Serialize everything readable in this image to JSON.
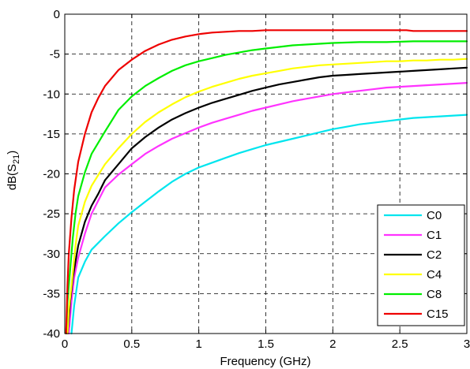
{
  "chart_data": {
    "type": "line",
    "title": "",
    "xlabel": "Frequency (GHz)",
    "ylabel_parts": {
      "main": "dB(S",
      "sub": "21",
      "end": ")"
    },
    "xlim": [
      0,
      3
    ],
    "ylim": [
      -40,
      0
    ],
    "x_ticks": [
      0,
      0.5,
      1,
      1.5,
      2,
      2.5,
      3
    ],
    "x_tick_labels": [
      "0",
      "0.5",
      "1",
      "1.5",
      "2",
      "2.5",
      "3"
    ],
    "y_ticks": [
      -40,
      -35,
      -30,
      -25,
      -20,
      -15,
      -10,
      -5,
      0
    ],
    "y_tick_labels": [
      "-40",
      "-35",
      "-30",
      "-25",
      "-20",
      "-15",
      "-10",
      "-5",
      "0"
    ],
    "grid": true,
    "grid_style": "dashed",
    "legend_position": "bottom-right",
    "series": [
      {
        "name": "C0",
        "color": "#00e5ee",
        "points": [
          [
            0.05,
            -40
          ],
          [
            0.07,
            -36.5
          ],
          [
            0.1,
            -33
          ],
          [
            0.15,
            -31
          ],
          [
            0.2,
            -29.5
          ],
          [
            0.3,
            -27.8
          ],
          [
            0.4,
            -26.2
          ],
          [
            0.5,
            -24.8
          ],
          [
            0.6,
            -23.5
          ],
          [
            0.7,
            -22.2
          ],
          [
            0.8,
            -21
          ],
          [
            0.9,
            -20
          ],
          [
            1.0,
            -19.2
          ],
          [
            1.1,
            -18.6
          ],
          [
            1.2,
            -18
          ],
          [
            1.3,
            -17.4
          ],
          [
            1.4,
            -16.9
          ],
          [
            1.5,
            -16.4
          ],
          [
            1.6,
            -16
          ],
          [
            1.7,
            -15.6
          ],
          [
            1.8,
            -15.2
          ],
          [
            1.9,
            -14.8
          ],
          [
            2.0,
            -14.4
          ],
          [
            2.1,
            -14.1
          ],
          [
            2.2,
            -13.8
          ],
          [
            2.3,
            -13.6
          ],
          [
            2.4,
            -13.4
          ],
          [
            2.5,
            -13.2
          ],
          [
            2.6,
            -13
          ],
          [
            2.7,
            -12.9
          ],
          [
            2.8,
            -12.8
          ],
          [
            2.9,
            -12.7
          ],
          [
            3.0,
            -12.6
          ]
        ]
      },
      {
        "name": "C1",
        "color": "#ff33ff",
        "points": [
          [
            0.03,
            -40
          ],
          [
            0.05,
            -36
          ],
          [
            0.07,
            -33
          ],
          [
            0.1,
            -30.5
          ],
          [
            0.15,
            -27.5
          ],
          [
            0.2,
            -25
          ],
          [
            0.3,
            -21.7
          ],
          [
            0.4,
            -20.1
          ],
          [
            0.5,
            -18.8
          ],
          [
            0.6,
            -17.5
          ],
          [
            0.7,
            -16.5
          ],
          [
            0.8,
            -15.6
          ],
          [
            0.9,
            -14.9
          ],
          [
            1.0,
            -14.2
          ],
          [
            1.1,
            -13.6
          ],
          [
            1.2,
            -13.1
          ],
          [
            1.3,
            -12.6
          ],
          [
            1.4,
            -12.1
          ],
          [
            1.5,
            -11.7
          ],
          [
            1.6,
            -11.3
          ],
          [
            1.7,
            -10.9
          ],
          [
            1.8,
            -10.6
          ],
          [
            1.9,
            -10.3
          ],
          [
            2.0,
            -10
          ],
          [
            2.1,
            -9.8
          ],
          [
            2.2,
            -9.6
          ],
          [
            2.3,
            -9.4
          ],
          [
            2.4,
            -9.2
          ],
          [
            2.5,
            -9.1
          ],
          [
            2.6,
            -9
          ],
          [
            2.7,
            -8.9
          ],
          [
            2.8,
            -8.8
          ],
          [
            2.9,
            -8.7
          ],
          [
            3.0,
            -8.6
          ]
        ]
      },
      {
        "name": "C2",
        "color": "#000000",
        "points": [
          [
            0.02,
            -40
          ],
          [
            0.04,
            -36
          ],
          [
            0.06,
            -33
          ],
          [
            0.1,
            -29
          ],
          [
            0.15,
            -26
          ],
          [
            0.2,
            -24
          ],
          [
            0.25,
            -22.5
          ],
          [
            0.3,
            -20.8
          ],
          [
            0.4,
            -18.8
          ],
          [
            0.5,
            -16.8
          ],
          [
            0.6,
            -15.4
          ],
          [
            0.7,
            -14.2
          ],
          [
            0.8,
            -13.2
          ],
          [
            0.9,
            -12.4
          ],
          [
            1.0,
            -11.7
          ],
          [
            1.1,
            -11.1
          ],
          [
            1.2,
            -10.6
          ],
          [
            1.3,
            -10.1
          ],
          [
            1.4,
            -9.6
          ],
          [
            1.5,
            -9.2
          ],
          [
            1.6,
            -8.8
          ],
          [
            1.7,
            -8.5
          ],
          [
            1.8,
            -8.2
          ],
          [
            1.9,
            -7.9
          ],
          [
            2.0,
            -7.7
          ],
          [
            2.1,
            -7.6
          ],
          [
            2.2,
            -7.5
          ],
          [
            2.3,
            -7.4
          ],
          [
            2.4,
            -7.3
          ],
          [
            2.5,
            -7.2
          ],
          [
            2.6,
            -7.1
          ],
          [
            2.7,
            -7
          ],
          [
            2.8,
            -6.9
          ],
          [
            2.9,
            -6.8
          ],
          [
            3.0,
            -6.7
          ]
        ]
      },
      {
        "name": "C4",
        "color": "#ffff00",
        "points": [
          [
            0.02,
            -40
          ],
          [
            0.03,
            -37
          ],
          [
            0.05,
            -34
          ],
          [
            0.08,
            -29
          ],
          [
            0.1,
            -26.5
          ],
          [
            0.15,
            -23.5
          ],
          [
            0.2,
            -21.5
          ],
          [
            0.3,
            -18.8
          ],
          [
            0.4,
            -16.8
          ],
          [
            0.5,
            -15
          ],
          [
            0.6,
            -13.5
          ],
          [
            0.7,
            -12.3
          ],
          [
            0.8,
            -11.3
          ],
          [
            0.9,
            -10.4
          ],
          [
            1.0,
            -9.7
          ],
          [
            1.1,
            -9.1
          ],
          [
            1.2,
            -8.6
          ],
          [
            1.3,
            -8.1
          ],
          [
            1.4,
            -7.7
          ],
          [
            1.5,
            -7.4
          ],
          [
            1.6,
            -7.1
          ],
          [
            1.7,
            -6.8
          ],
          [
            1.8,
            -6.6
          ],
          [
            1.9,
            -6.4
          ],
          [
            2.0,
            -6.3
          ],
          [
            2.1,
            -6.2
          ],
          [
            2.2,
            -6.1
          ],
          [
            2.3,
            -6
          ],
          [
            2.4,
            -5.9
          ],
          [
            2.5,
            -5.9
          ],
          [
            2.6,
            -5.8
          ],
          [
            2.7,
            -5.8
          ],
          [
            2.8,
            -5.7
          ],
          [
            2.9,
            -5.7
          ],
          [
            3.0,
            -5.6
          ]
        ]
      },
      {
        "name": "C8",
        "color": "#00ee00",
        "points": [
          [
            0.01,
            -40
          ],
          [
            0.02,
            -36
          ],
          [
            0.04,
            -32
          ],
          [
            0.06,
            -28
          ],
          [
            0.08,
            -25
          ],
          [
            0.1,
            -22.8
          ],
          [
            0.15,
            -19.8
          ],
          [
            0.2,
            -17.5
          ],
          [
            0.3,
            -14.7
          ],
          [
            0.4,
            -12
          ],
          [
            0.5,
            -10.3
          ],
          [
            0.6,
            -9
          ],
          [
            0.7,
            -8
          ],
          [
            0.8,
            -7.1
          ],
          [
            0.9,
            -6.4
          ],
          [
            1.0,
            -5.9
          ],
          [
            1.1,
            -5.5
          ],
          [
            1.2,
            -5.1
          ],
          [
            1.3,
            -4.8
          ],
          [
            1.4,
            -4.5
          ],
          [
            1.5,
            -4.3
          ],
          [
            1.6,
            -4.1
          ],
          [
            1.7,
            -3.9
          ],
          [
            1.8,
            -3.8
          ],
          [
            1.9,
            -3.7
          ],
          [
            2.0,
            -3.6
          ],
          [
            2.2,
            -3.5
          ],
          [
            2.4,
            -3.5
          ],
          [
            2.6,
            -3.4
          ],
          [
            2.8,
            -3.4
          ],
          [
            3.0,
            -3.4
          ]
        ]
      },
      {
        "name": "C15",
        "color": "#ee0000",
        "points": [
          [
            0.01,
            -40
          ],
          [
            0.02,
            -34
          ],
          [
            0.03,
            -30
          ],
          [
            0.05,
            -25.5
          ],
          [
            0.07,
            -22
          ],
          [
            0.1,
            -18.5
          ],
          [
            0.15,
            -15
          ],
          [
            0.2,
            -12.3
          ],
          [
            0.25,
            -10.5
          ],
          [
            0.3,
            -9
          ],
          [
            0.4,
            -7
          ],
          [
            0.5,
            -5.7
          ],
          [
            0.6,
            -4.6
          ],
          [
            0.7,
            -3.8
          ],
          [
            0.8,
            -3.2
          ],
          [
            0.9,
            -2.8
          ],
          [
            1.0,
            -2.5
          ],
          [
            1.1,
            -2.3
          ],
          [
            1.2,
            -2.2
          ],
          [
            1.3,
            -2.1
          ],
          [
            1.4,
            -2.1
          ],
          [
            1.5,
            -2
          ],
          [
            1.6,
            -2
          ],
          [
            1.7,
            -2
          ],
          [
            1.8,
            -2
          ],
          [
            2.0,
            -2
          ],
          [
            2.2,
            -2
          ],
          [
            2.4,
            -2
          ],
          [
            2.55,
            -2
          ],
          [
            2.6,
            -2.1
          ],
          [
            2.8,
            -2.1
          ],
          [
            3.0,
            -2.1
          ]
        ]
      }
    ]
  }
}
